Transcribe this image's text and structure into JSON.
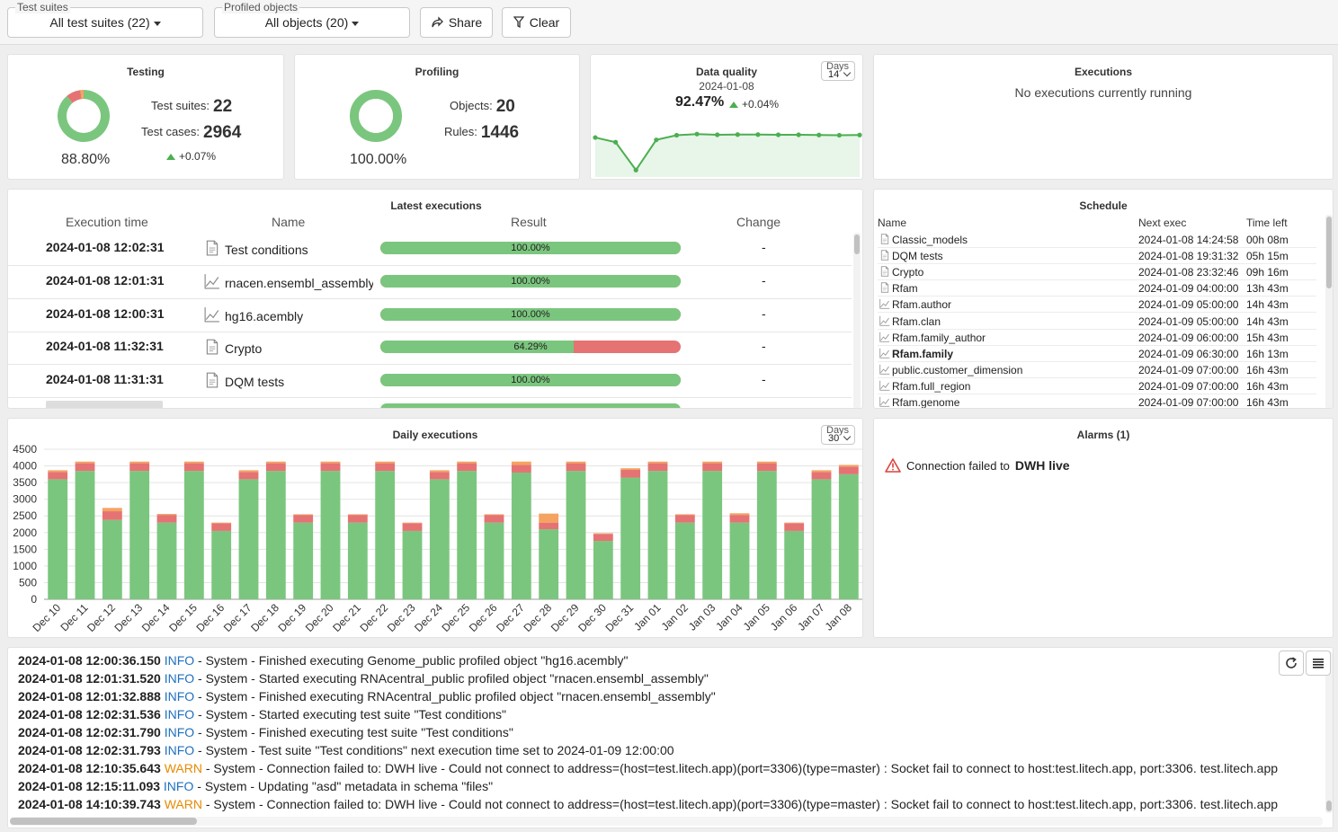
{
  "filters": {
    "test_suites_legend": "Test suites",
    "test_suites_value": "All test suites (22)",
    "profiled_legend": "Profiled objects",
    "profiled_value": "All objects (20)",
    "share_label": "Share",
    "clear_label": "Clear"
  },
  "testing": {
    "title": "Testing",
    "pct": "88.80%",
    "suites_label": "Test suites:",
    "suites_value": "22",
    "cases_label": "Test cases:",
    "cases_value": "2964",
    "delta": "+0.07%",
    "donut": {
      "pass": 88.8,
      "fail": 9.2,
      "warn": 2.0
    }
  },
  "profiling": {
    "title": "Profiling",
    "pct": "100.00%",
    "objects_label": "Objects:",
    "objects_value": "20",
    "rules_label": "Rules:",
    "rules_value": "1446",
    "donut": {
      "pass": 100
    }
  },
  "data_quality": {
    "title": "Data quality",
    "date": "2024-01-08",
    "pct": "92.47%",
    "delta": "+0.04%",
    "days_label": "Days",
    "days_value": "14",
    "series": [
      92.3,
      92.1,
      90.9,
      92.2,
      92.4,
      92.45,
      92.42,
      92.43,
      92.43,
      92.42,
      92.42,
      92.41,
      92.4,
      92.41
    ],
    "ylim": [
      90.6,
      93.0
    ]
  },
  "executions": {
    "title": "Executions",
    "empty_text": "No executions currently running"
  },
  "latest": {
    "title": "Latest executions",
    "headers": [
      "Execution time",
      "Name",
      "Result",
      "Change"
    ],
    "rows": [
      {
        "time": "2024-01-08 12:02:31",
        "icon": "document-icon",
        "name": "Test conditions",
        "pct_text": "100.00%",
        "pct": 100,
        "change": "-"
      },
      {
        "time": "2024-01-08 12:01:31",
        "icon": "chart-line-icon",
        "name": "rnacen.ensembl_assembly",
        "pct_text": "100.00%",
        "pct": 100,
        "change": "-"
      },
      {
        "time": "2024-01-08 12:00:31",
        "icon": "chart-line-icon",
        "name": "hg16.acembly",
        "pct_text": "100.00%",
        "pct": 100,
        "change": "-"
      },
      {
        "time": "2024-01-08 11:32:31",
        "icon": "document-icon",
        "name": "Crypto",
        "pct_text": "64.29%",
        "pct": 64.29,
        "change": "-"
      },
      {
        "time": "2024-01-08 11:31:31",
        "icon": "document-icon",
        "name": "DQM tests",
        "pct_text": "100.00%",
        "pct": 100,
        "change": "-"
      }
    ]
  },
  "schedule": {
    "title": "Schedule",
    "headers": [
      "Name",
      "Next exec",
      "Time left"
    ],
    "rows": [
      {
        "icon": "document-icon",
        "name": "Classic_models",
        "next": "2024-01-08 14:24:58",
        "left": "00h 08m",
        "bold": false
      },
      {
        "icon": "document-icon",
        "name": "DQM tests",
        "next": "2024-01-08 19:31:32",
        "left": "05h 15m",
        "bold": false
      },
      {
        "icon": "document-icon",
        "name": "Crypto",
        "next": "2024-01-08 23:32:46",
        "left": "09h 16m",
        "bold": false
      },
      {
        "icon": "document-icon",
        "name": "Rfam",
        "next": "2024-01-09 04:00:00",
        "left": "13h 43m",
        "bold": false
      },
      {
        "icon": "chart-line-icon",
        "name": "Rfam.author",
        "next": "2024-01-09 05:00:00",
        "left": "14h 43m",
        "bold": false
      },
      {
        "icon": "chart-line-icon",
        "name": "Rfam.clan",
        "next": "2024-01-09 05:00:00",
        "left": "14h 43m",
        "bold": false
      },
      {
        "icon": "chart-line-icon",
        "name": "Rfam.family_author",
        "next": "2024-01-09 06:00:00",
        "left": "15h 43m",
        "bold": false
      },
      {
        "icon": "chart-line-icon",
        "name": "Rfam.family",
        "next": "2024-01-09 06:30:00",
        "left": "16h 13m",
        "bold": true
      },
      {
        "icon": "chart-line-icon",
        "name": "public.customer_dimension",
        "next": "2024-01-09 07:00:00",
        "left": "16h 43m",
        "bold": false
      },
      {
        "icon": "chart-line-icon",
        "name": "Rfam.full_region",
        "next": "2024-01-09 07:00:00",
        "left": "16h 43m",
        "bold": false
      },
      {
        "icon": "chart-line-icon",
        "name": "Rfam.genome",
        "next": "2024-01-09 07:00:00",
        "left": "16h 43m",
        "bold": false
      }
    ]
  },
  "daily": {
    "title": "Daily executions",
    "days_label": "Days",
    "days_value": "30"
  },
  "chart_data": {
    "type": "bar",
    "stacked": true,
    "title": "Daily executions",
    "categories": [
      "Dec 10",
      "Dec 11",
      "Dec 12",
      "Dec 13",
      "Dec 14",
      "Dec 15",
      "Dec 16",
      "Dec 17",
      "Dec 18",
      "Dec 19",
      "Dec 20",
      "Dec 21",
      "Dec 22",
      "Dec 23",
      "Dec 24",
      "Dec 25",
      "Dec 26",
      "Dec 27",
      "Dec 28",
      "Dec 29",
      "Dec 30",
      "Dec 31",
      "Jan 01",
      "Jan 02",
      "Jan 03",
      "Jan 04",
      "Jan 05",
      "Jan 06",
      "Jan 07",
      "Jan 08"
    ],
    "series": [
      {
        "color": "#7bc67e",
        "values": [
          3600,
          3850,
          2380,
          3850,
          2300,
          3850,
          2050,
          3600,
          3850,
          2300,
          3850,
          2300,
          3850,
          2050,
          3600,
          3850,
          2300,
          3800,
          2100,
          3850,
          1750,
          3650,
          3850,
          2300,
          3850,
          2300,
          3850,
          2050,
          3600,
          3750
        ]
      },
      {
        "color": "#e57373",
        "values": [
          220,
          230,
          260,
          230,
          230,
          230,
          230,
          220,
          230,
          230,
          230,
          230,
          230,
          230,
          220,
          230,
          230,
          230,
          200,
          230,
          210,
          230,
          230,
          230,
          230,
          230,
          230,
          230,
          220,
          230
        ]
      },
      {
        "color": "#f4a460",
        "values": [
          50,
          50,
          100,
          50,
          30,
          50,
          20,
          50,
          50,
          20,
          50,
          20,
          50,
          20,
          50,
          50,
          20,
          100,
          270,
          50,
          20,
          50,
          50,
          20,
          50,
          50,
          50,
          20,
          50,
          50
        ]
      }
    ],
    "yticks": [
      0,
      500,
      1000,
      1500,
      2000,
      2500,
      3000,
      3500,
      4000,
      4500
    ],
    "ylim": [
      0,
      4500
    ],
    "grid": true
  },
  "alarms": {
    "title": "Alarms (1)",
    "items": [
      {
        "prefix": "Connection failed to",
        "target": "DWH live"
      }
    ]
  },
  "log": {
    "lines": [
      {
        "ts": "2024-01-08 12:00:36.150",
        "level": "INFO",
        "msg": " - System - Finished executing Genome_public profiled object \"hg16.acembly\""
      },
      {
        "ts": "2024-01-08 12:01:31.520",
        "level": "INFO",
        "msg": " - System - Started executing RNAcentral_public profiled object \"rnacen.ensembl_assembly\""
      },
      {
        "ts": "2024-01-08 12:01:32.888",
        "level": "INFO",
        "msg": " - System - Finished executing RNAcentral_public profiled object \"rnacen.ensembl_assembly\""
      },
      {
        "ts": "2024-01-08 12:02:31.536",
        "level": "INFO",
        "msg": " - System - Started executing test suite \"Test conditions\""
      },
      {
        "ts": "2024-01-08 12:02:31.790",
        "level": "INFO",
        "msg": " - System - Finished executing test suite \"Test conditions\""
      },
      {
        "ts": "2024-01-08 12:02:31.793",
        "level": "INFO",
        "msg": " - System - Test suite \"Test conditions\" next execution time set to 2024-01-09 12:00:00"
      },
      {
        "ts": "2024-01-08 12:10:35.643",
        "level": "WARN",
        "msg": " - System - Connection failed to: DWH live - Could not connect to address=(host=test.litech.app)(port=3306)(type=master) : Socket fail to connect to host:test.litech.app, port:3306. test.litech.app"
      },
      {
        "ts": "2024-01-08 12:15:11.093",
        "level": "INFO",
        "msg": " - System - Updating \"asd\" metadata in schema \"files\""
      },
      {
        "ts": "2024-01-08 14:10:39.743",
        "level": "WARN",
        "msg": " - System - Connection failed to: DWH live - Could not connect to address=(host=test.litech.app)(port=3306)(type=master) : Socket fail to connect to host:test.litech.app, port:3306. test.litech.app"
      }
    ]
  },
  "colors": {
    "pass": "#7bc67e",
    "fail": "#e57373",
    "warn": "#f4a460",
    "info": "#1f6fbf",
    "warn_text": "#e68a00"
  }
}
